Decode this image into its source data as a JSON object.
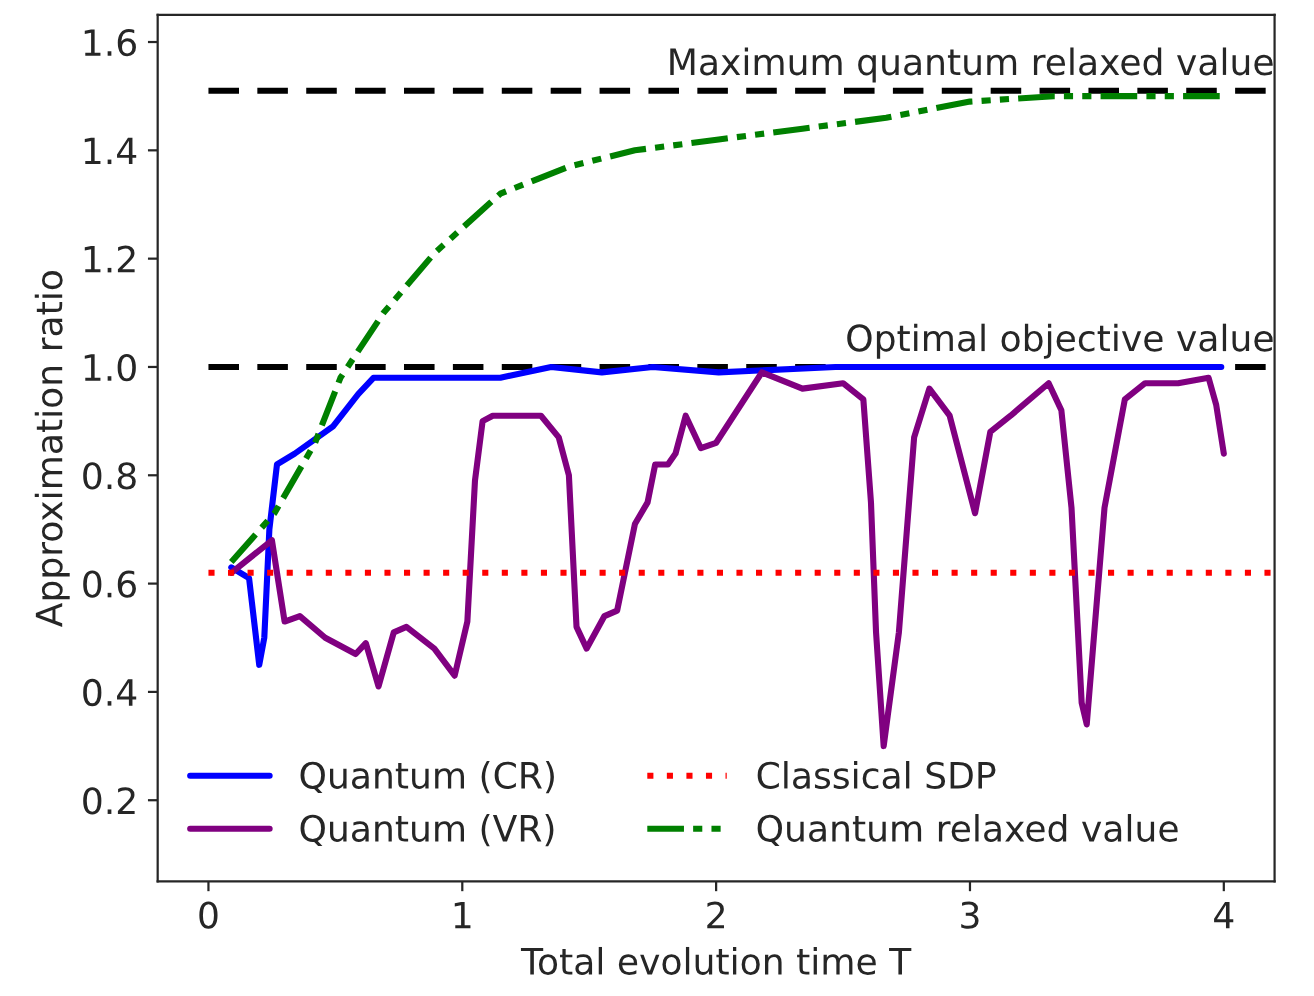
{
  "chart_data": {
    "type": "line",
    "xlabel": "Total evolution time T",
    "ylabel": "Approximation ratio",
    "xlim": [
      -0.2,
      4.2
    ],
    "ylim": [
      0.05,
      1.65
    ],
    "xticks": [
      0,
      1,
      2,
      3,
      4
    ],
    "yticks": [
      {
        "value": 0.2,
        "label": "0.2"
      },
      {
        "value": 0.4,
        "label": "0.4"
      },
      {
        "value": 0.6,
        "label": "0.6"
      },
      {
        "value": 0.8,
        "label": "0.8"
      },
      {
        "value": 1.0,
        "label": "1.0"
      },
      {
        "value": 1.2,
        "label": "1.2"
      },
      {
        "value": 1.4,
        "label": "1.4"
      },
      {
        "value": 1.6,
        "label": "1.6"
      }
    ],
    "grid": false,
    "legend": "bottom left",
    "series": [
      {
        "name": "Quantum (CR)",
        "color": "#0000ff",
        "line_style": "solid",
        "x": [
          0.09,
          0.16,
          0.2,
          0.22,
          0.24,
          0.27,
          0.34,
          0.49,
          0.59,
          0.65,
          0.82,
          1.15,
          1.35,
          1.55,
          1.75,
          2.01,
          2.47,
          3.99
        ],
        "values": [
          0.63,
          0.61,
          0.45,
          0.5,
          0.7,
          0.82,
          0.84,
          0.89,
          0.95,
          0.98,
          0.98,
          0.98,
          1.0,
          0.99,
          1.0,
          0.99,
          1.0,
          1.0
        ]
      },
      {
        "name": "Quantum (VR)",
        "color": "#800080",
        "line_style": "solid",
        "x": [
          0.09,
          0.25,
          0.3,
          0.36,
          0.46,
          0.58,
          0.62,
          0.67,
          0.73,
          0.78,
          0.89,
          0.97,
          1.02,
          1.05,
          1.08,
          1.12,
          1.31,
          1.38,
          1.42,
          1.45,
          1.49,
          1.56,
          1.61,
          1.68,
          1.73,
          1.76,
          1.81,
          1.84,
          1.88,
          1.94,
          2.0,
          2.18,
          2.34,
          2.5,
          2.58,
          2.61,
          2.63,
          2.66,
          2.72,
          2.78,
          2.84,
          2.92,
          3.02,
          3.08,
          3.16,
          3.31,
          3.36,
          3.4,
          3.44,
          3.46,
          3.53,
          3.61,
          3.69,
          3.82,
          3.94,
          3.97,
          4.0
        ],
        "values": [
          0.62,
          0.68,
          0.53,
          0.54,
          0.5,
          0.47,
          0.49,
          0.41,
          0.51,
          0.52,
          0.48,
          0.43,
          0.53,
          0.79,
          0.9,
          0.91,
          0.91,
          0.87,
          0.8,
          0.52,
          0.48,
          0.54,
          0.55,
          0.71,
          0.75,
          0.82,
          0.82,
          0.84,
          0.91,
          0.85,
          0.86,
          0.99,
          0.96,
          0.97,
          0.94,
          0.75,
          0.51,
          0.3,
          0.51,
          0.87,
          0.96,
          0.91,
          0.73,
          0.88,
          0.91,
          0.97,
          0.92,
          0.74,
          0.38,
          0.34,
          0.74,
          0.94,
          0.97,
          0.97,
          0.98,
          0.93,
          0.84
        ]
      },
      {
        "name": "Classical SDP",
        "color": "#ff0000",
        "line_style": "dotted",
        "x": [
          0,
          4.2
        ],
        "values": [
          0.62,
          0.62
        ]
      },
      {
        "name": "Quantum relaxed value",
        "color": "#008000",
        "line_style": "dashdotdot",
        "x": [
          0.09,
          0.26,
          0.42,
          0.52,
          0.69,
          0.89,
          1.15,
          1.42,
          1.68,
          2.01,
          2.34,
          2.67,
          3.0,
          3.33,
          3.99
        ],
        "values": [
          0.64,
          0.73,
          0.86,
          0.98,
          1.1,
          1.21,
          1.32,
          1.37,
          1.4,
          1.42,
          1.44,
          1.46,
          1.49,
          1.5,
          1.5
        ]
      }
    ],
    "ref_lines": [
      {
        "axis": "y",
        "value": 1.51,
        "label": "Maximum quantum relaxed value",
        "color": "#000000",
        "line_style": "dashed"
      },
      {
        "axis": "y",
        "value": 1.0,
        "label": "Optimal objective value",
        "color": "#000000",
        "line_style": "dashed"
      }
    ]
  }
}
